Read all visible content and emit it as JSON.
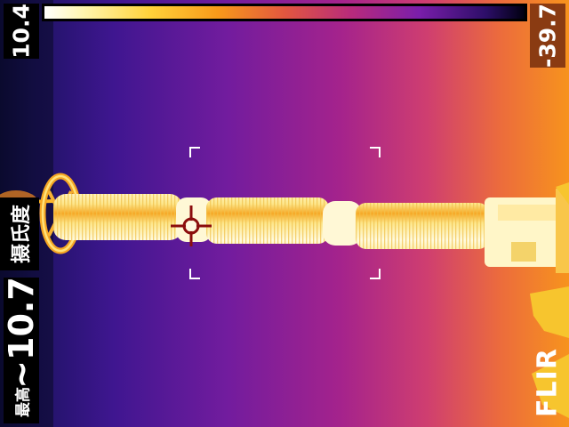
{
  "scale": {
    "min_reading": "10.4",
    "max_reading": "-39.7",
    "colors": {
      "hot": "#ffffff",
      "warm": "#ffd23a",
      "mid": "#e2573f",
      "cool": "#7a1eaa",
      "cold": "#000010"
    }
  },
  "measurement": {
    "unit": "摄氏度",
    "max_value": "~10.7",
    "max_label": "最高"
  },
  "brand": {
    "logo_text": "FLIR"
  },
  "icons": {
    "spot": "crosshair-icon",
    "brand": "flir-logo"
  }
}
